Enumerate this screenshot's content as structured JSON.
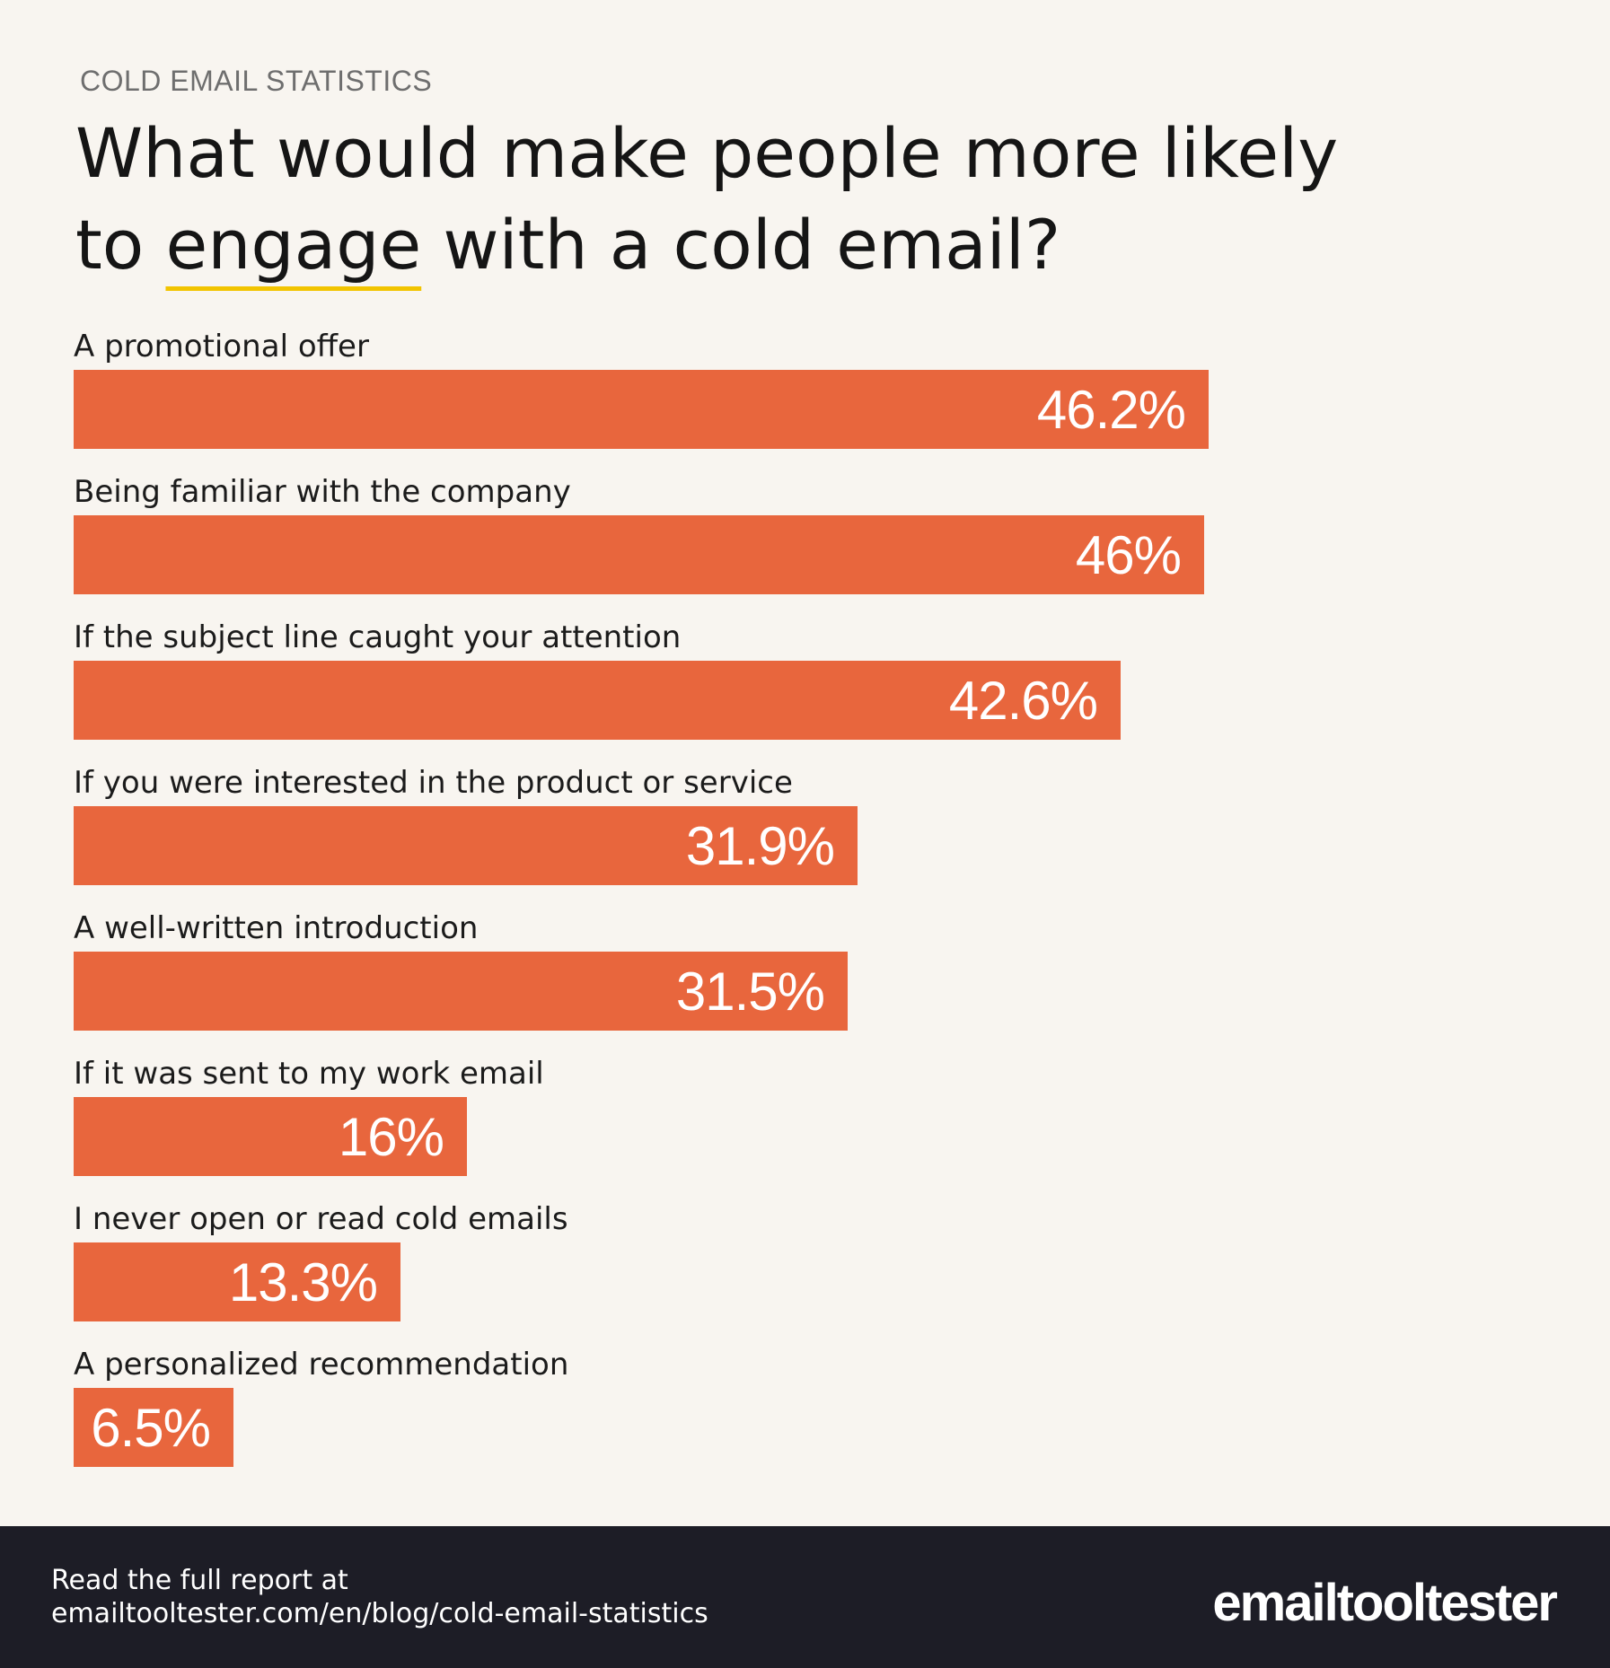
{
  "eyebrow": "COLD EMAIL STATISTICS",
  "title": {
    "line1": "What would make people more likely",
    "line2_prefix": "to ",
    "line2_highlight": "engage",
    "line2_suffix": " with a cold email?"
  },
  "chart_data": {
    "type": "bar",
    "orientation": "horizontal",
    "categories": [
      "A promotional offer",
      "Being familiar with the company",
      "If the subject line caught your attention",
      "If you were interested in the product or service",
      "A well-written introduction",
      "If it was sent to my work email",
      "I never open or read cold emails",
      "A personalized recommendation"
    ],
    "values": [
      46.2,
      46,
      42.6,
      31.9,
      31.5,
      16,
      13.3,
      6.5
    ],
    "value_labels": [
      "46.2%",
      "46%",
      "42.6%",
      "31.9%",
      "31.5%",
      "16%",
      "13.3%",
      "6.5%"
    ],
    "xlim": [
      0,
      57
    ],
    "grid": false,
    "bar_color": "#e8663d"
  },
  "footer": {
    "line1": "Read the full report at",
    "line2": "emailtooltester.com/en/blog/cold-email-statistics",
    "logo_text": "emailtooltester"
  },
  "colors": {
    "background": "#f8f5f0",
    "bar": "#e8663d",
    "footer": "#1d1d26",
    "highlight_underline": "#f2c400"
  }
}
